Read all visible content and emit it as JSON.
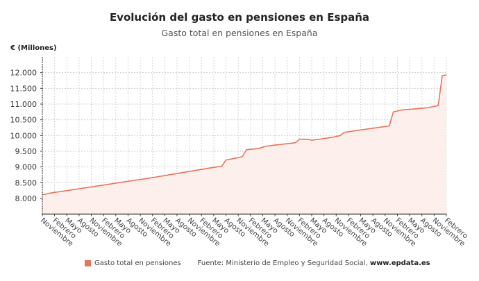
{
  "chart_data": {
    "type": "area",
    "title": "Evolución del gasto en pensiones en España",
    "subtitle": "Gasto total en pensiones en España",
    "ylabel": "€ (Millones)",
    "xlabel": "",
    "ylim": [
      7500,
      12500
    ],
    "yticks": [
      8000,
      8500,
      9000,
      9500,
      10000,
      10500,
      11000,
      11500,
      12000
    ],
    "ytick_labels": [
      "8.000",
      "8.500",
      "9.000",
      "9.500",
      "10.000",
      "10.500",
      "11.000",
      "11.500",
      "12.000"
    ],
    "xtick_labels": [
      "Noviembre",
      "Febrero",
      "Mayo",
      "Agosto",
      "Noviembre",
      "Febrero",
      "Mayo",
      "Agosto",
      "Noviembre",
      "Febrero",
      "Mayo",
      "Agosto",
      "Noviembre",
      "Febrero",
      "Mayo",
      "Agosto",
      "Noviembre",
      "Febrero",
      "Mayo",
      "Agosto",
      "Noviembre",
      "Febrero",
      "Mayo",
      "Agosto",
      "Noviembre",
      "Febrero",
      "Mayo",
      "Agosto",
      "Noviembre",
      "Febrero",
      "Mayo",
      "Agosto",
      "Noviembre",
      "Febrero"
    ],
    "grid": true,
    "legend_placement": "bottom",
    "series": [
      {
        "name": "Gasto total en pensiones",
        "color": "#e8735a",
        "fill": "#fdeeea",
        "values": [
          8115,
          8140,
          8170,
          8190,
          8209,
          8229,
          8248,
          8268,
          8288,
          8307,
          8327,
          8346,
          8366,
          8386,
          8405,
          8425,
          8445,
          8464,
          8484,
          8503,
          8523,
          8543,
          8562,
          8582,
          8601,
          8621,
          8640,
          8660,
          8682,
          8704,
          8725,
          8747,
          8769,
          8791,
          8812,
          8834,
          8856,
          8878,
          8899,
          8921,
          8943,
          8965,
          8986,
          9008,
          9030,
          9220,
          9246,
          9272,
          9298,
          9325,
          9545,
          9560,
          9575,
          9590,
          9628,
          9665,
          9680,
          9695,
          9710,
          9725,
          9740,
          9755,
          9770,
          9880,
          9880,
          9880,
          9850,
          9868,
          9886,
          9904,
          9922,
          9940,
          9970,
          10000,
          10100,
          10119,
          10138,
          10157,
          10176,
          10195,
          10213,
          10232,
          10250,
          10268,
          10287,
          10305,
          10750,
          10780,
          10810,
          10821,
          10832,
          10843,
          10853,
          10864,
          10875,
          10900,
          10925,
          10950,
          11905,
          11925
        ]
      }
    ],
    "source_label": "Fuente: Ministerio de Empleo y Seguridad Social,",
    "source_site": "www.epdata.es"
  }
}
